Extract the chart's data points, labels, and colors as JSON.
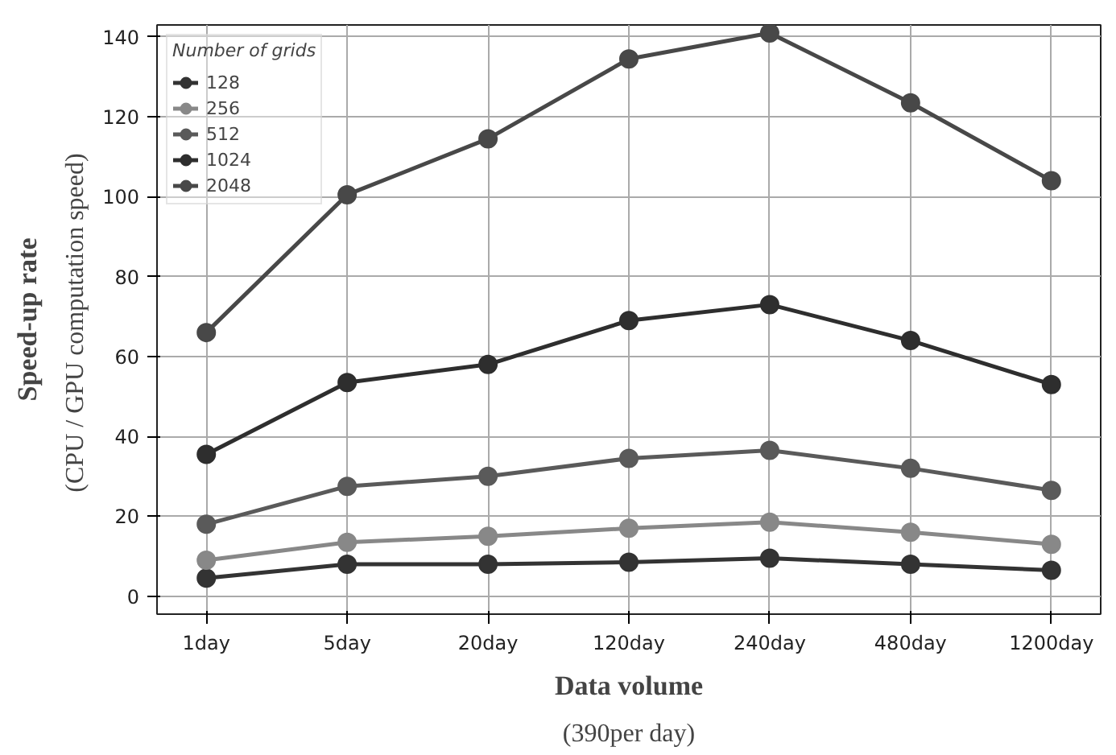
{
  "chart_data": {
    "type": "line",
    "xlabel": "Data volume",
    "ylabel": "Speed-up rate",
    "legend_title": "Number of grids",
    "annotations": [
      "(CPU / GPU computation  speed)",
      "(390per day)"
    ],
    "categories": [
      "1day",
      "5day",
      "20day",
      "120day",
      "240day",
      "480day",
      "1200day"
    ],
    "series": [
      {
        "name": "128",
        "color": "#333333",
        "values": [
          4.5,
          8,
          8,
          8.5,
          9.5,
          8,
          6.5
        ]
      },
      {
        "name": "256",
        "color": "#888888",
        "values": [
          9,
          13.5,
          15,
          17,
          18.5,
          16,
          13
        ]
      },
      {
        "name": "512",
        "color": "#5a5a5a",
        "values": [
          18,
          27.5,
          30,
          34.5,
          36.5,
          32,
          26.5
        ]
      },
      {
        "name": "1024",
        "color": "#2e2e2e",
        "values": [
          35.5,
          53.5,
          58,
          69,
          73,
          64,
          53
        ]
      },
      {
        "name": "2048",
        "color": "#484848",
        "values": [
          66,
          100.5,
          114.5,
          134.5,
          141,
          123.5,
          104
        ]
      }
    ],
    "ylim": [
      -4.5,
      143
    ],
    "yticks": [
      0,
      20,
      40,
      60,
      80,
      100,
      120,
      140
    ],
    "grid": true,
    "legend": "top left",
    "marker": "circle",
    "line_style": "solid"
  }
}
